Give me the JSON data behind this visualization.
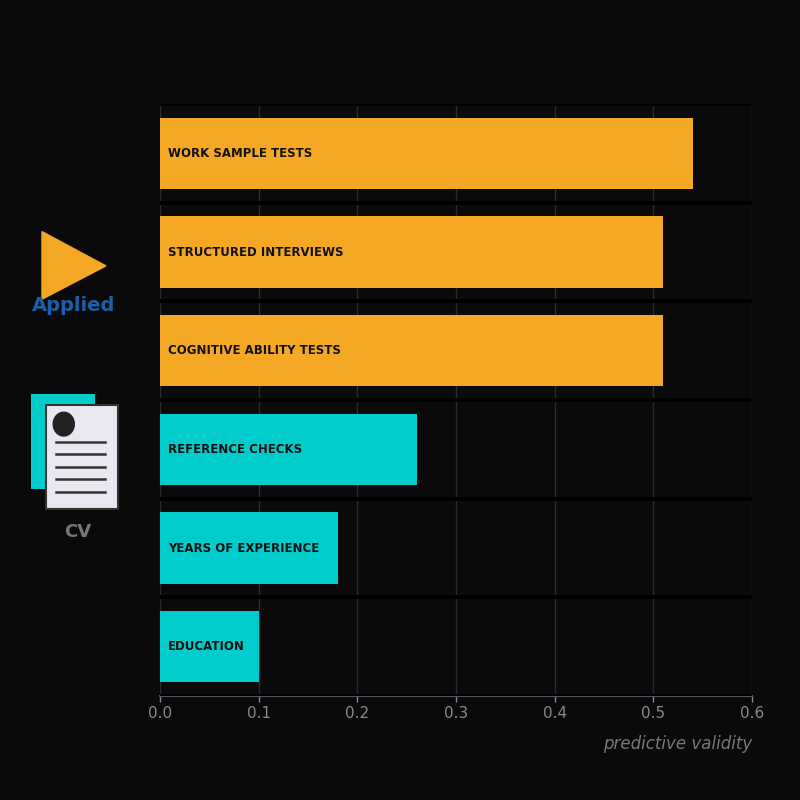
{
  "categories": [
    "WORK SAMPLE TESTS",
    "STRUCTURED INTERVIEWS",
    "COGNITIVE ABILITY TESTS",
    "REFERENCE CHECKS",
    "YEARS OF EXPERIENCE",
    "EDUCATION"
  ],
  "values": [
    0.54,
    0.51,
    0.51,
    0.26,
    0.18,
    0.1
  ],
  "colors": [
    "#F5A823",
    "#F5A823",
    "#F5A823",
    "#00CCCC",
    "#00CCCC",
    "#00CCCC"
  ],
  "xlim": [
    0,
    0.6
  ],
  "xticks": [
    0.0,
    0.1,
    0.2,
    0.3,
    0.4,
    0.5,
    0.6
  ],
  "xlabel": "predictive validity",
  "xlabel_color": "#777777",
  "background_color": "#0a0a0a",
  "bar_label_color": "#111111",
  "axis_color": "#555566",
  "tick_color": "#888888",
  "grid_color": "#2a2a3a",
  "separator_color": "#000000",
  "bar_height": 0.72,
  "applied_color": "#1a5fa8",
  "triangle_color": "#F5A823",
  "cv_text_color": "#777777"
}
